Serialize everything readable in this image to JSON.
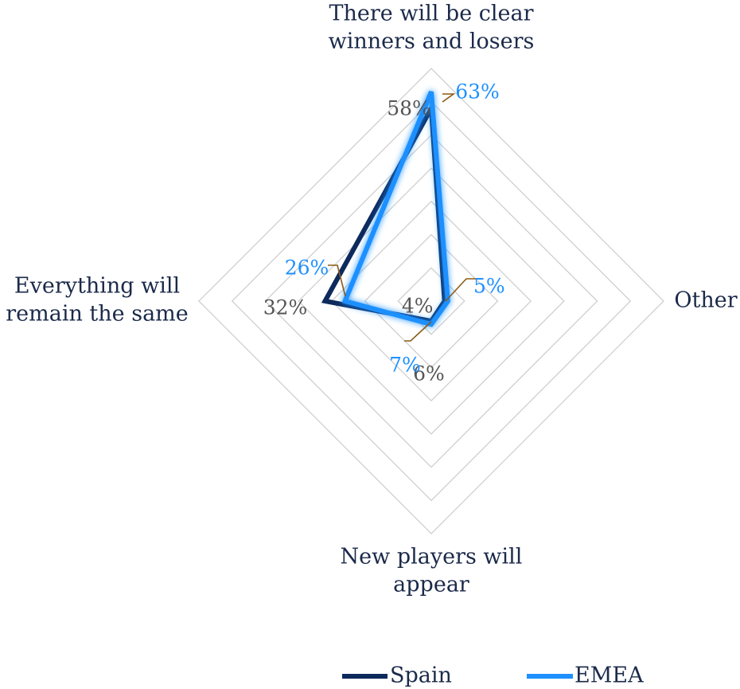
{
  "chart_data": {
    "type": "radar",
    "title": "",
    "categories": [
      "There will be clear winners and losers",
      "Other",
      "New players will appear",
      "Everything will remain the same"
    ],
    "category_lines": [
      [
        "There will be clear",
        "winners and losers"
      ],
      [
        "Other"
      ],
      [
        "New players will",
        "appear"
      ],
      [
        "Everything will",
        "remain the same"
      ]
    ],
    "series": [
      {
        "name": "Spain",
        "color": "#0d2a5c",
        "values": [
          58,
          4,
          6,
          32
        ],
        "labels": [
          "58%",
          "4%",
          "6%",
          "32%"
        ],
        "label_color": "#555555"
      },
      {
        "name": "EMEA",
        "color": "#1e90ff",
        "values": [
          63,
          5,
          7,
          26
        ],
        "labels": [
          "63%",
          "5%",
          "7%",
          "26%"
        ],
        "label_color": "#1e90ff"
      }
    ],
    "rmax": 70,
    "grid_rings": 7,
    "legend_position": "bottom"
  }
}
